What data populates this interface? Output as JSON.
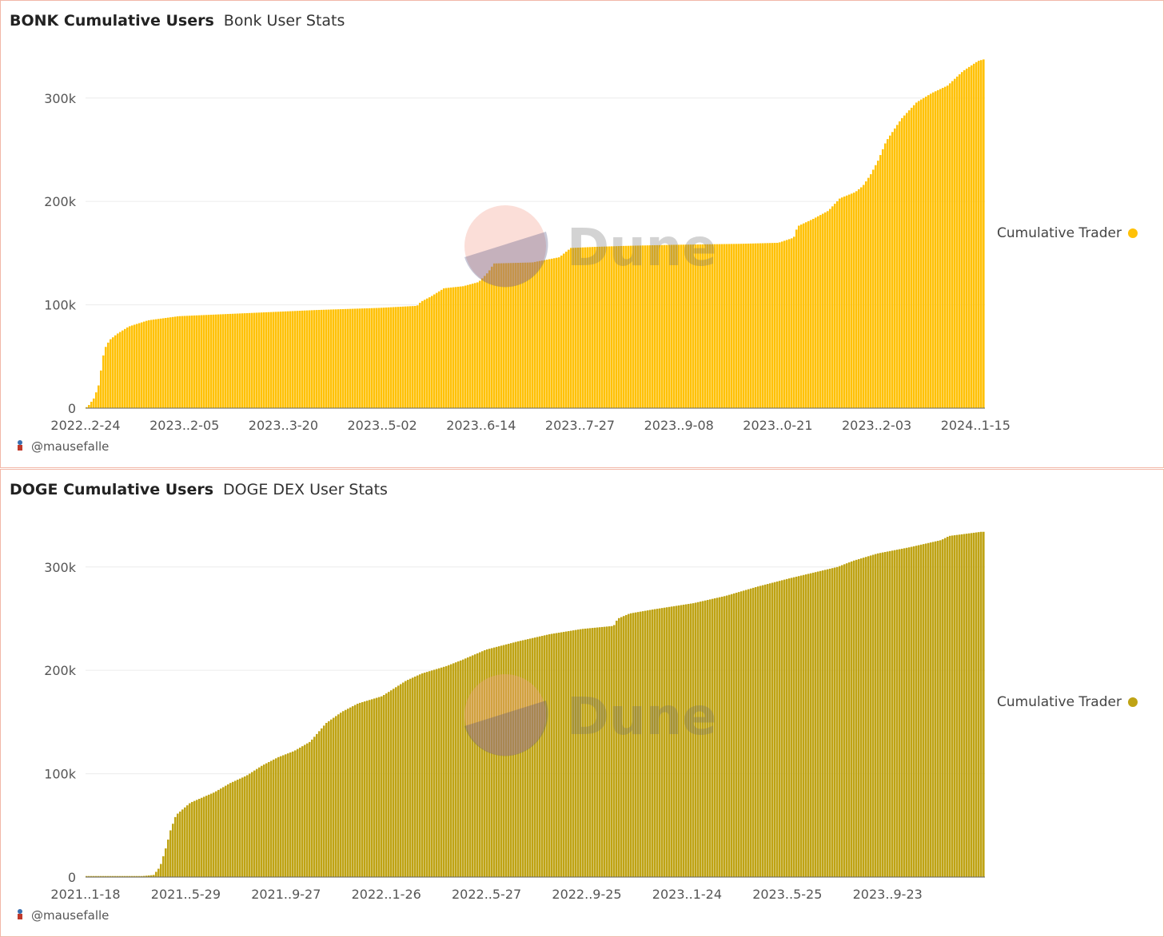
{
  "charts": [
    {
      "title": "BONK Cumulative Users",
      "subtitle": "Bonk User Stats",
      "legend": "Cumulative Trader",
      "author": "@mausefalle",
      "watermark": "Dune",
      "color": "#FFC107"
    },
    {
      "title": "DOGE Cumulative Users",
      "subtitle": "DOGE DEX User Stats",
      "legend": "Cumulative Trader",
      "author": "@mausefalle",
      "watermark": "Dune",
      "color": "#BFA314"
    }
  ],
  "chart_data": [
    {
      "type": "bar",
      "ylim": [
        0,
        340000
      ],
      "yticks": [
        0,
        100000,
        200000,
        300000
      ],
      "ytick_labels": [
        "0",
        "100k",
        "200k",
        "300k"
      ],
      "xtick_labels": [
        "2022..2-24",
        "2023..2-05",
        "2023..3-20",
        "2023..5-02",
        "2023..6-14",
        "2023..7-27",
        "2023..9-08",
        "2023..0-21",
        "2023..2-03",
        "2024..1-15"
      ],
      "legend_position": "right",
      "grid": true,
      "points": [
        [
          0,
          1000
        ],
        [
          3,
          3000
        ],
        [
          10,
          10000
        ],
        [
          17,
          25000
        ],
        [
          20,
          45000
        ],
        [
          24,
          58000
        ],
        [
          30,
          66000
        ],
        [
          40,
          72000
        ],
        [
          55,
          79000
        ],
        [
          80,
          85000
        ],
        [
          120,
          89000
        ],
        [
          180,
          91000
        ],
        [
          240,
          93000
        ],
        [
          300,
          95000
        ],
        [
          380,
          97000
        ],
        [
          430,
          99000
        ],
        [
          435,
          103000
        ],
        [
          448,
          108000
        ],
        [
          465,
          116000
        ],
        [
          490,
          118000
        ],
        [
          510,
          122000
        ],
        [
          518,
          128000
        ],
        [
          523,
          132000
        ],
        [
          530,
          140000
        ],
        [
          580,
          141000
        ],
        [
          615,
          146000
        ],
        [
          630,
          155000
        ],
        [
          660,
          156000
        ],
        [
          700,
          157000
        ],
        [
          760,
          158000
        ],
        [
          850,
          159000
        ],
        [
          900,
          160000
        ],
        [
          920,
          165000
        ],
        [
          925,
          176000
        ],
        [
          945,
          183000
        ],
        [
          965,
          191000
        ],
        [
          980,
          203000
        ],
        [
          1000,
          209000
        ],
        [
          1010,
          215000
        ],
        [
          1020,
          226000
        ],
        [
          1030,
          240000
        ],
        [
          1040,
          258000
        ],
        [
          1060,
          280000
        ],
        [
          1080,
          296000
        ],
        [
          1100,
          305000
        ],
        [
          1120,
          312000
        ],
        [
          1140,
          326000
        ],
        [
          1160,
          336000
        ],
        [
          1170,
          338000
        ]
      ],
      "x_max": 1170
    },
    {
      "type": "bar",
      "ylim": [
        0,
        340000
      ],
      "yticks": [
        0,
        100000,
        200000,
        300000
      ],
      "ytick_labels": [
        "0",
        "100k",
        "200k",
        "300k"
      ],
      "xtick_labels": [
        "2021..1-18",
        "2021..5-29",
        "2021..9-27",
        "2022..1-26",
        "2022..5-27",
        "2022..9-25",
        "2023..1-24",
        "2023..5-25",
        "2023..9-23"
      ],
      "legend_position": "right",
      "grid": true,
      "points": [
        [
          0,
          1000
        ],
        [
          70,
          1000
        ],
        [
          84,
          2000
        ],
        [
          92,
          10000
        ],
        [
          100,
          30000
        ],
        [
          105,
          45000
        ],
        [
          112,
          60000
        ],
        [
          130,
          72000
        ],
        [
          160,
          82000
        ],
        [
          180,
          91000
        ],
        [
          200,
          98000
        ],
        [
          220,
          108000
        ],
        [
          240,
          116000
        ],
        [
          260,
          122000
        ],
        [
          280,
          131000
        ],
        [
          300,
          149000
        ],
        [
          320,
          160000
        ],
        [
          340,
          168000
        ],
        [
          370,
          175000
        ],
        [
          400,
          190000
        ],
        [
          420,
          197000
        ],
        [
          450,
          204000
        ],
        [
          470,
          210000
        ],
        [
          500,
          220000
        ],
        [
          540,
          228000
        ],
        [
          580,
          235000
        ],
        [
          620,
          240000
        ],
        [
          660,
          243000
        ],
        [
          665,
          250000
        ],
        [
          680,
          255000
        ],
        [
          710,
          259000
        ],
        [
          760,
          265000
        ],
        [
          800,
          272000
        ],
        [
          840,
          281000
        ],
        [
          880,
          289000
        ],
        [
          940,
          300000
        ],
        [
          960,
          306000
        ],
        [
          990,
          313000
        ],
        [
          1030,
          319000
        ],
        [
          1070,
          326000
        ],
        [
          1080,
          330000
        ],
        [
          1120,
          334000
        ]
      ],
      "x_max": 1126
    }
  ]
}
